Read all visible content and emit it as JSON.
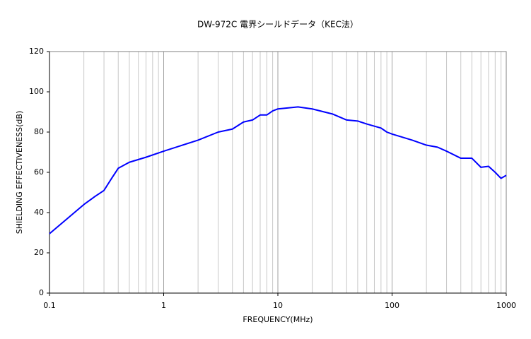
{
  "chart_data": {
    "type": "line",
    "title": "DW-972C 電界シールドデータ（KEC法）",
    "x_label": "FREQUENCY(MHz)",
    "y_label": "SHIELDING EFFECTIVENESS(dB)",
    "x_scale": "log",
    "x": [
      0.1,
      0.15,
      0.2,
      0.25,
      0.3,
      0.35,
      0.4,
      0.5,
      0.7,
      1,
      2,
      3,
      4,
      5,
      6,
      7,
      8,
      9,
      10,
      15,
      20,
      30,
      40,
      50,
      60,
      80,
      90,
      100,
      150,
      200,
      250,
      300,
      400,
      500,
      600,
      700,
      800,
      900,
      1000
    ],
    "series": [
      {
        "name": "DW-972C",
        "color": "#0000ff",
        "values": [
          29.5,
          38,
          44,
          48,
          51,
          57,
          62,
          65,
          67.5,
          70.5,
          76,
          80,
          81.5,
          85,
          86,
          88.5,
          88.5,
          90.5,
          91.5,
          92.5,
          91.5,
          89,
          86,
          85.5,
          84,
          82,
          80,
          79,
          76,
          73.5,
          72.5,
          70.5,
          67,
          67,
          62.5,
          63,
          60,
          57,
          58.5
        ]
      }
    ],
    "xlim": [
      0.1,
      1000
    ],
    "xticks": [
      0.1,
      1,
      10,
      100,
      1000
    ],
    "ylim": [
      0,
      120
    ],
    "yticks": [
      0,
      20,
      40,
      60,
      80,
      100,
      120
    ],
    "grid": "x"
  }
}
